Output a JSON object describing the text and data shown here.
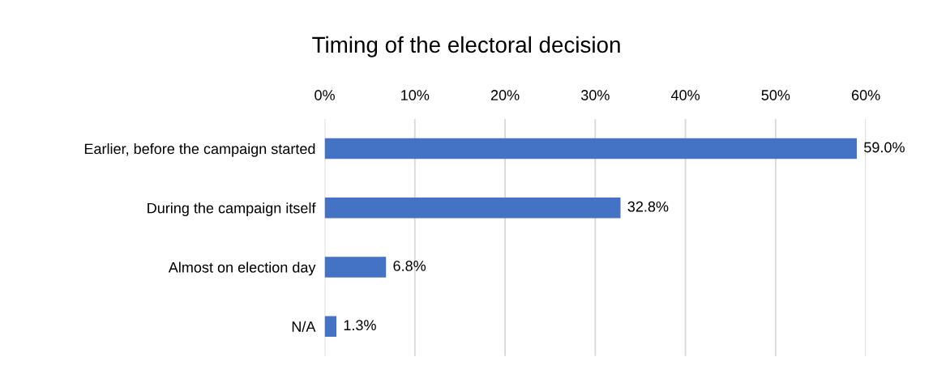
{
  "chart_data": {
    "type": "bar",
    "orientation": "horizontal",
    "title": "Timing of the electoral decision",
    "categories": [
      "Earlier, before the campaign started",
      "During the campaign itself",
      "Almost on election day",
      "N/A"
    ],
    "values": [
      59.0,
      32.8,
      6.8,
      1.3
    ],
    "color": "#4472c4",
    "value_labels": [
      "59.0%",
      "32.8%",
      "6.8%",
      "1.3%"
    ],
    "xlim": [
      0,
      60
    ],
    "xticks": [
      {
        "value": 0,
        "label": "0%"
      },
      {
        "value": 10,
        "label": "10%"
      },
      {
        "value": 20,
        "label": "20%"
      },
      {
        "value": 30,
        "label": "30%"
      },
      {
        "value": 40,
        "label": "40%"
      },
      {
        "value": 50,
        "label": "50%"
      },
      {
        "value": 60,
        "label": "60%"
      }
    ],
    "grid": "x",
    "legend": false
  }
}
